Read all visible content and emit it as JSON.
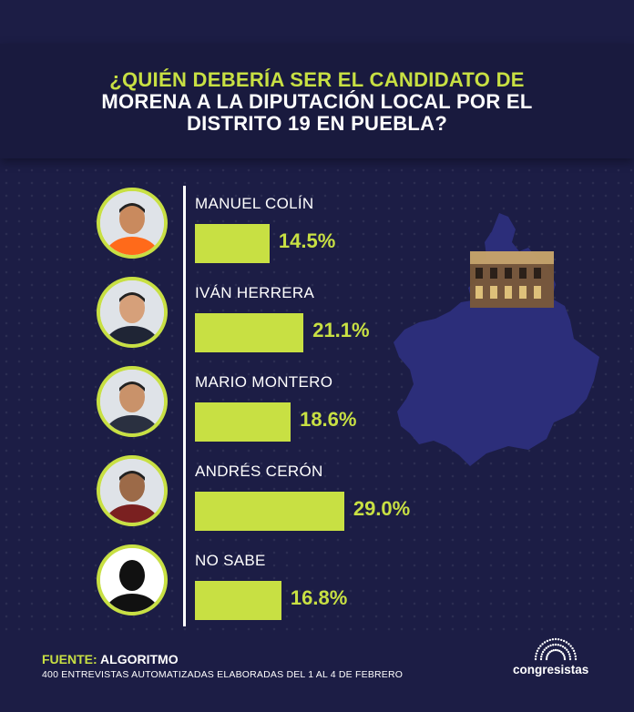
{
  "title": {
    "line1": "¿QUIÉN DEBERÍA SER EL CANDIDATO DE",
    "line2": "MORENA A LA DIPUTACIÓN LOCAL POR EL",
    "line3": "DISTRITO 19 EN PUEBLA?"
  },
  "colors": {
    "accent": "#c8e043",
    "background": "#1c1d45",
    "map": "#2c2e7a"
  },
  "chart_data": {
    "type": "bar",
    "orientation": "horizontal",
    "categories": [
      "MANUEL COLÍN",
      "IVÁN HERRERA",
      "MARIO MONTERO",
      "ANDRÉS CERÓN",
      "NO SABE"
    ],
    "values": [
      14.5,
      21.1,
      18.6,
      29.0,
      16.8
    ],
    "value_labels": [
      "14.5%",
      "21.1%",
      "18.6%",
      "29.0%",
      "16.8%"
    ],
    "unit": "%",
    "grid": false,
    "legend": "none"
  },
  "footer": {
    "source_key": "FUENTE:",
    "source_value": "ALGORITMO",
    "note": "400 ENTREVISTAS AUTOMATIZADAS ELABORADAS DEL 1 AL 4 DE FEBRERO"
  },
  "brand": {
    "name": "congresistas"
  }
}
